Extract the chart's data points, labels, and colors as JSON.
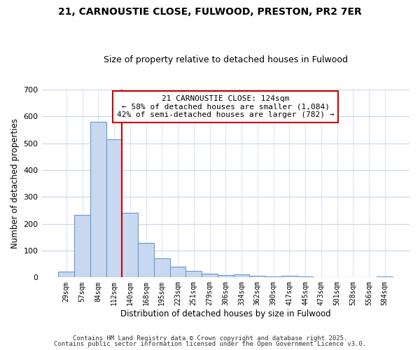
{
  "title": "21, CARNOUSTIE CLOSE, FULWOOD, PRESTON, PR2 7ER",
  "subtitle": "Size of property relative to detached houses in Fulwood",
  "xlabel": "Distribution of detached houses by size in Fulwood",
  "ylabel": "Number of detached properties",
  "bins": [
    "29sqm",
    "57sqm",
    "84sqm",
    "112sqm",
    "140sqm",
    "168sqm",
    "195sqm",
    "223sqm",
    "251sqm",
    "279sqm",
    "306sqm",
    "334sqm",
    "362sqm",
    "390sqm",
    "417sqm",
    "445sqm",
    "473sqm",
    "501sqm",
    "528sqm",
    "556sqm",
    "584sqm"
  ],
  "values": [
    23,
    232,
    580,
    515,
    240,
    128,
    70,
    40,
    25,
    13,
    8,
    10,
    5,
    3,
    5,
    4,
    0,
    0,
    0,
    0,
    3
  ],
  "bar_color": "#c8d8f0",
  "bar_edge_color": "#6699cc",
  "red_line_after_index": 3,
  "annotation_text": "21 CARNOUSTIE CLOSE: 124sqm\n← 58% of detached houses are smaller (1,084)\n42% of semi-detached houses are larger (782) →",
  "annotation_box_color": "#ffffff",
  "annotation_border_color": "#cc0000",
  "ylim": [
    0,
    700
  ],
  "yticks": [
    0,
    100,
    200,
    300,
    400,
    500,
    600,
    700
  ],
  "footer1": "Contains HM Land Registry data © Crown copyright and database right 2025.",
  "footer2": "Contains public sector information licensed under the Open Government Licence v3.0.",
  "bg_color": "#ffffff",
  "plot_bg_color": "#ffffff",
  "grid_color": "#c8d4ee"
}
